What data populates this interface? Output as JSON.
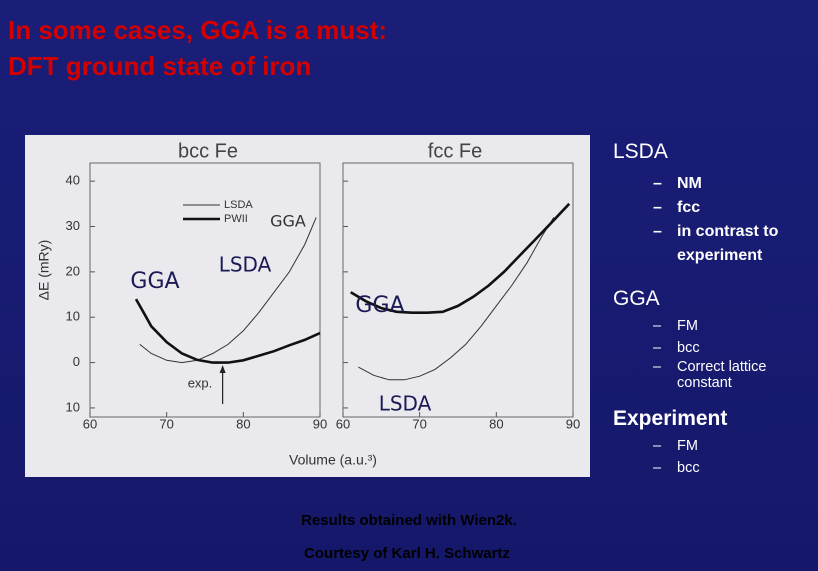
{
  "title_lines": [
    "In some cases, GGA is a must:",
    "DFT ground state of iron"
  ],
  "figure": {
    "y_label": "ΔE (mRy)",
    "x_label": "Volume (a.u.³)",
    "ylim": [
      -12,
      44
    ],
    "yticks": [
      {
        "value": -10,
        "label": "10"
      },
      0,
      10,
      20,
      30,
      40
    ],
    "exp_label": "exp.",
    "exp_volume": 77.3,
    "panels": [
      {
        "title": "bcc Fe",
        "xlim": [
          60,
          90
        ],
        "xticks": [
          60,
          70,
          80,
          90
        ],
        "legend": [
          "LSDA",
          "PWII"
        ],
        "series": [
          {
            "name": "LSDA",
            "x": [
              66.5,
              68,
              70,
              72,
              74,
              76,
              78,
              80,
              82,
              84,
              86,
              88,
              89.5
            ],
            "values": [
              4,
              2,
              0.5,
              0,
              0.5,
              2,
              4,
              7,
              11,
              15.5,
              20,
              26,
              32
            ]
          },
          {
            "name": "PWII",
            "x": [
              66,
              67,
              68,
              70,
              72,
              74,
              76,
              78,
              80,
              82,
              84,
              86,
              88,
              90
            ],
            "values": [
              14,
              11,
              8,
              4.5,
              2,
              0.6,
              0,
              0,
              0.5,
              1.5,
              2.5,
              3.8,
              5,
              6.5
            ]
          }
        ],
        "annotations": [
          "GGA",
          "GGA",
          "LSDA"
        ]
      },
      {
        "title": "fcc Fe",
        "xlim": [
          60,
          90
        ],
        "xticks": [
          60,
          70,
          80,
          90
        ],
        "series": [
          {
            "name": "LSDA",
            "x": [
              62,
              64,
              66,
              68,
              70,
              72,
              74,
              76,
              78,
              80,
              82,
              84,
              86,
              87.5
            ],
            "values": [
              -1,
              -2.8,
              -3.8,
              -3.8,
              -3,
              -1.5,
              1,
              4,
              8,
              12.5,
              17,
              22,
              28,
              32
            ]
          },
          {
            "name": "PWII",
            "x": [
              61,
              63,
              65,
              67,
              69,
              71,
              73,
              75,
              77,
              79,
              81,
              83,
              85,
              87,
              89.5
            ],
            "values": [
              15.5,
              13.5,
              12,
              11.2,
              11,
              11,
              11.2,
              12.5,
              14.5,
              17,
              20,
              23.5,
              27,
              30.5,
              35
            ]
          }
        ],
        "annotations": [
          "GGA",
          "LSDA"
        ]
      }
    ]
  },
  "sections": [
    {
      "heading": "LSDA",
      "items": [
        "NM",
        "fcc",
        "in contrast to experiment"
      ]
    },
    {
      "heading": "GGA",
      "items": [
        "FM",
        "bcc",
        "Correct lattice constant"
      ]
    },
    {
      "heading": "Experiment",
      "items": [
        "FM",
        "bcc"
      ]
    }
  ],
  "captions": [
    "Results obtained with Wien2k.",
    "Courtesy of Karl H. Schwartz"
  ]
}
